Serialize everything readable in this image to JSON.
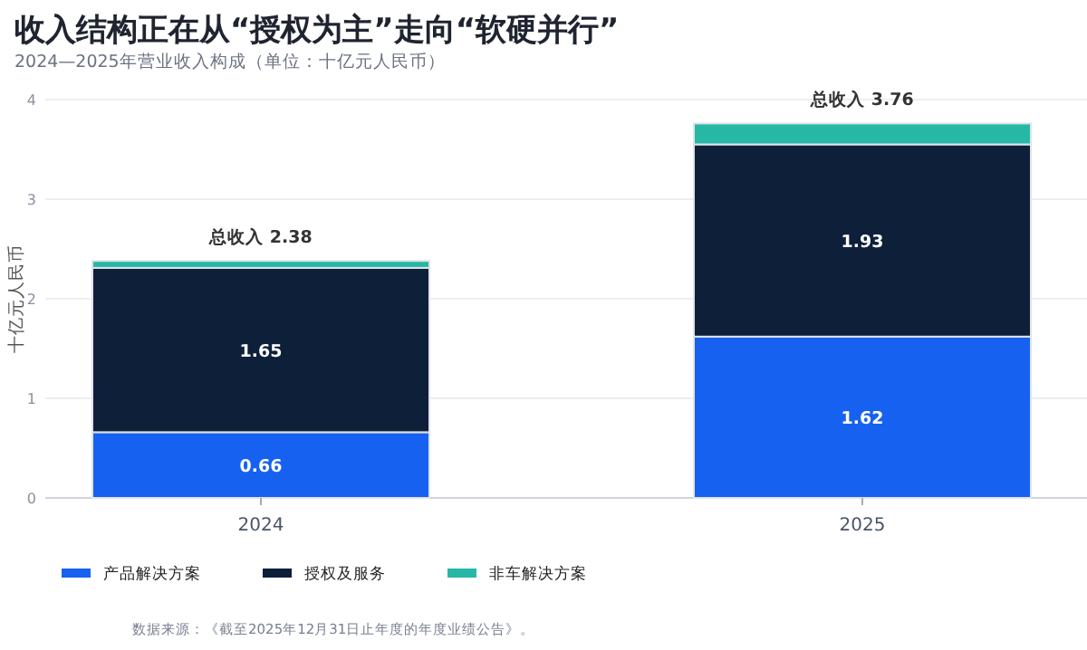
{
  "chart_data": {
    "type": "bar",
    "title": "收入结构正在从“授权为主”走向“软硬并行”",
    "subtitle": "2024—2025年营业收入构成（单位：十亿元人民币）",
    "ylabel": "十亿元人民币",
    "categories": [
      "2024",
      "2025"
    ],
    "stacked": true,
    "ylim": [
      0,
      4
    ],
    "yticks": [
      0,
      1,
      2,
      3,
      4
    ],
    "grid": "y",
    "legend": "bottom left",
    "series": [
      {
        "name": "产品解决方案",
        "color": "#1761f0",
        "values": [
          0.66,
          1.62
        ],
        "value_labels": [
          "0.66",
          "1.62"
        ]
      },
      {
        "name": "授权及服务",
        "color": "#0e1f3a",
        "values": [
          1.65,
          1.93
        ],
        "value_labels": [
          "1.65",
          "1.93"
        ]
      },
      {
        "name": "非车解决方案",
        "color": "#26b8a5",
        "values": [
          0.07,
          0.21
        ]
      }
    ],
    "totals": [
      "总收入 2.38",
      "总收入 3.76"
    ],
    "annotations": [
      "数据来源：《截至2025年12月31日止年度的年度业绩公告》。"
    ]
  }
}
